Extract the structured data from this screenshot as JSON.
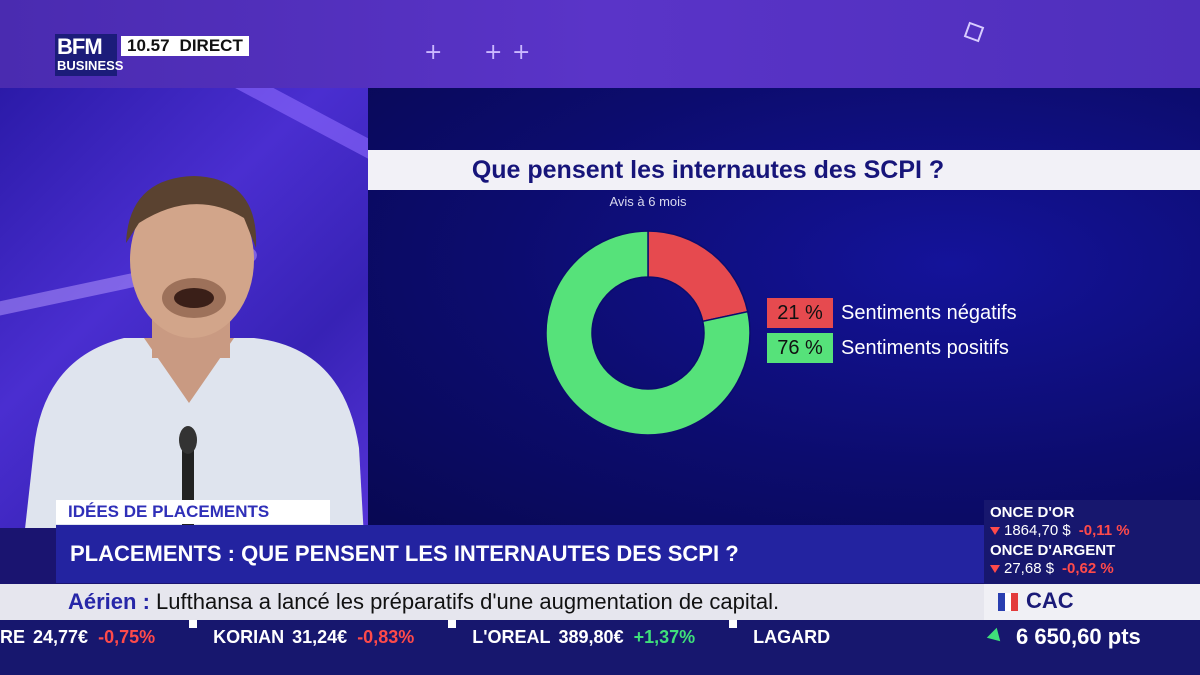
{
  "channel": {
    "logo_top": "BFM",
    "logo_bottom": "BUSINESS",
    "time": "10.57",
    "live_label": "DIRECT"
  },
  "graphic": {
    "title": "Que pensent les internautes des SCPI ?",
    "subtitle": "Avis à 6 mois",
    "colors": {
      "negative": "#e64a4f",
      "positive": "#56e27a"
    }
  },
  "chart_data": {
    "type": "pie",
    "title": "Que pensent les internautes des SCPI ?",
    "subtitle": "Avis à 6 mois",
    "slices": [
      {
        "label": "Sentiments négatifs",
        "value": 21,
        "display": "21 %",
        "color": "#e64a4f"
      },
      {
        "label": "Sentiments positifs",
        "value": 76,
        "display": "76 %",
        "color": "#56e27a"
      }
    ],
    "donut": true
  },
  "lower_third": {
    "category": "IDÉES DE PLACEMENTS",
    "headline": "PLACEMENTS : QUE PENSENT LES INTERNAUTES DES SCPI ?"
  },
  "flash": {
    "prefix": "Aérien :",
    "text": " Lufthansa a lancé les préparatifs d'une augmentation de capital."
  },
  "ticker": [
    {
      "name": "RE",
      "price": "24,77€",
      "change": "-0,75%",
      "direction": "down"
    },
    {
      "name": "KORIAN",
      "price": "31,24€",
      "change": "-0,83%",
      "direction": "down"
    },
    {
      "name": "L'OREAL",
      "price": "389,80€",
      "change": "+1,37%",
      "direction": "up"
    },
    {
      "name": "LAGARD",
      "price": "",
      "change": "",
      "direction": ""
    }
  ],
  "markets": {
    "gold_label": "ONCE D'OR",
    "gold_price": "1864,70 $",
    "gold_change": "-0,11 %",
    "silver_label": "ONCE D'ARGENT",
    "silver_price": "27,68 $",
    "silver_change": "-0,62 %",
    "index_name": "CAC",
    "index_value": "6 650,60 pts"
  }
}
